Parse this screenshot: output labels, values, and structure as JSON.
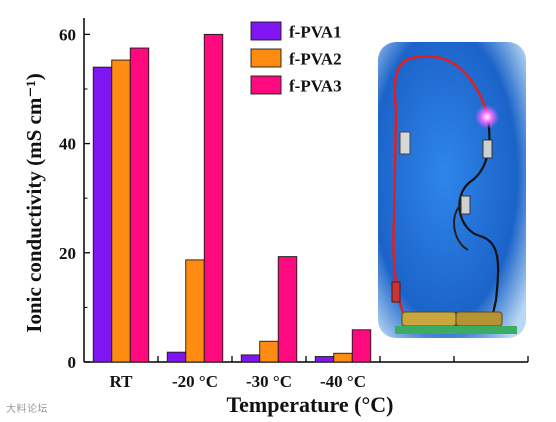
{
  "chart_data": {
    "type": "bar",
    "categories": [
      "RT",
      "-20 °C",
      "-30 °C",
      "-40 °C"
    ],
    "series": [
      {
        "name": "f-PVA1",
        "color": "#7f16f2",
        "values": [
          54,
          1.8,
          1.3,
          1.0
        ]
      },
      {
        "name": "f-PVA2",
        "color": "#ff8c12",
        "values": [
          55.3,
          18.7,
          3.8,
          1.6
        ]
      },
      {
        "name": "f-PVA3",
        "color": "#ff0a7e",
        "values": [
          57.5,
          60.0,
          19.3,
          5.9
        ]
      }
    ],
    "xlabel": "Temperature (°C)",
    "ylabel": "Ionic conductivity (mS cm⁻¹)",
    "ylim": [
      0,
      63
    ],
    "yticks": [
      0,
      20,
      40,
      60
    ],
    "grid": false,
    "legend": "top-center"
  },
  "inset_photo": {
    "description_icon": "led-circuit-photo-icon",
    "background": "#1a6fd8"
  },
  "watermark": "大料论坛"
}
